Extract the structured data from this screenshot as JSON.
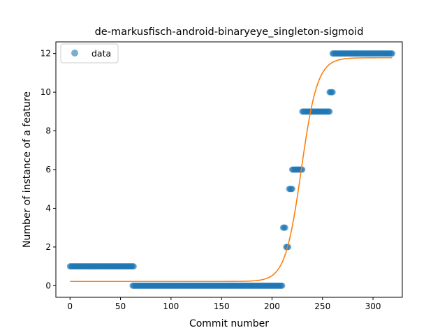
{
  "chart_data": {
    "type": "scatter",
    "title": "de-markusfisch-android-binaryeye_singleton-sigmoid",
    "xlabel": "Commit number",
    "ylabel": "Number of instance of a feature",
    "xlim": [
      -14,
      329
    ],
    "ylim": [
      -0.6,
      12.6
    ],
    "xticks": [
      0,
      50,
      100,
      150,
      200,
      250,
      300
    ],
    "yticks": [
      0,
      2,
      4,
      6,
      8,
      10,
      12
    ],
    "grid": false,
    "legend": {
      "placement": "top-left",
      "entries": [
        "data"
      ]
    },
    "colors": {
      "data": "#1f77b4",
      "fit": "#ff7f0e"
    },
    "series": [
      {
        "name": "data",
        "kind": "scatter",
        "segments": [
          {
            "x_start": 0,
            "x_end": 63,
            "y": 1
          },
          {
            "x_start": 62,
            "x_end": 210,
            "y": 0
          },
          {
            "x_start": 211,
            "x_end": 213,
            "y": 3
          },
          {
            "x_start": 214,
            "x_end": 216,
            "y": 2
          },
          {
            "x_start": 217,
            "x_end": 220,
            "y": 5
          },
          {
            "x_start": 220,
            "x_end": 230,
            "y": 6
          },
          {
            "x_start": 230,
            "x_end": 257,
            "y": 9
          },
          {
            "x_start": 257,
            "x_end": 260,
            "y": 10
          },
          {
            "x_start": 260,
            "x_end": 319,
            "y": 12
          }
        ]
      },
      {
        "kind": "line",
        "model": "sigmoid",
        "params": {
          "lower": 0.22,
          "upper": 11.78,
          "center": 229,
          "rate": 0.125
        },
        "x_range": [
          0,
          319
        ]
      }
    ]
  }
}
